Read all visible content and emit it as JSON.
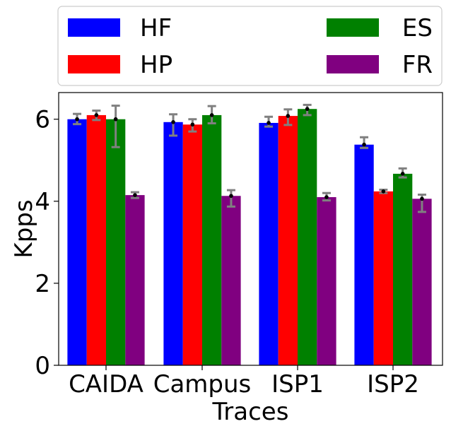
{
  "chart_data": {
    "type": "bar",
    "title": "",
    "xlabel": "Traces",
    "ylabel": "Kpps",
    "ylim": [
      0,
      6.65
    ],
    "yticks": [
      0,
      2,
      4,
      6
    ],
    "grid": false,
    "legend_placement": "top (outside plot, 2 columns)",
    "categories": [
      "CAIDA",
      "Campus",
      "ISP1",
      "ISP2"
    ],
    "series": [
      {
        "name": "HF",
        "color": "#0000ff",
        "values": [
          6.0,
          5.93,
          5.91,
          5.38
        ],
        "error": [
          [
            5.88,
            6.13
          ],
          [
            5.6,
            6.12
          ],
          [
            5.82,
            6.06
          ],
          [
            5.3,
            5.56
          ]
        ]
      },
      {
        "name": "HP",
        "color": "#ff0000",
        "values": [
          6.1,
          5.87,
          6.08,
          4.24
        ],
        "error": [
          [
            5.98,
            6.21
          ],
          [
            5.7,
            6.0
          ],
          [
            5.86,
            6.24
          ],
          [
            4.2,
            4.28
          ]
        ]
      },
      {
        "name": "ES",
        "color": "#008000",
        "values": [
          6.0,
          6.1,
          6.25,
          4.67
        ],
        "error": [
          [
            5.32,
            6.33
          ],
          [
            5.9,
            6.32
          ],
          [
            6.1,
            6.35
          ],
          [
            4.58,
            4.8
          ]
        ]
      },
      {
        "name": "FR",
        "color": "#800080",
        "values": [
          4.15,
          4.13,
          4.1,
          4.06
        ],
        "error": [
          [
            4.08,
            4.22
          ],
          [
            3.87,
            4.27
          ],
          [
            4.02,
            4.2
          ],
          [
            3.74,
            4.16
          ]
        ]
      }
    ]
  }
}
